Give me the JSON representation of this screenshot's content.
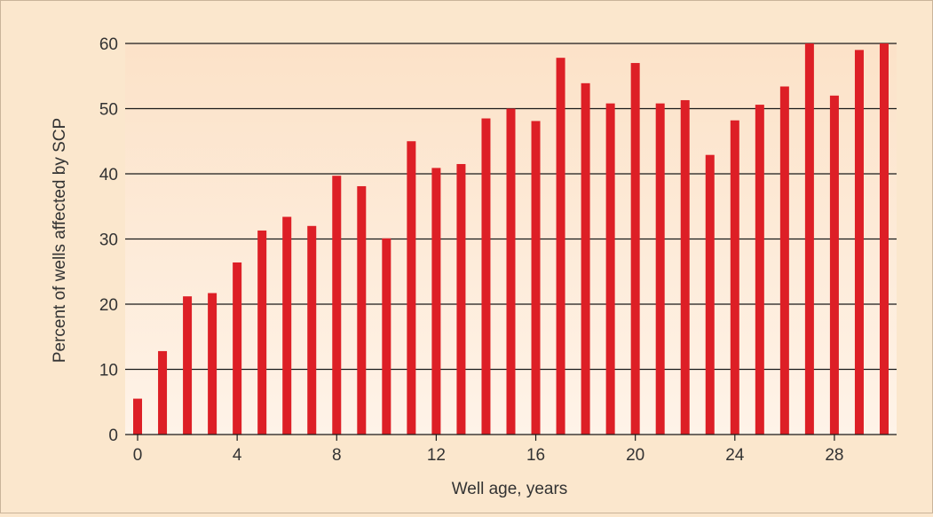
{
  "chart_data": {
    "type": "bar",
    "xlabel": "Well age, years",
    "ylabel": "Percent of wells affected by SCP",
    "x_tick_labels": [
      "0",
      "4",
      "8",
      "12",
      "16",
      "20",
      "24",
      "28"
    ],
    "y_tick_labels": [
      "0",
      "10",
      "20",
      "30",
      "40",
      "50",
      "60"
    ],
    "ylim": [
      0,
      60
    ],
    "grid": "horizontal",
    "categories": [
      0,
      1,
      2,
      3,
      4,
      5,
      6,
      7,
      8,
      9,
      10,
      11,
      12,
      13,
      14,
      15,
      16,
      17,
      18,
      19,
      20,
      21,
      22,
      23,
      24,
      25,
      26,
      27,
      28,
      29,
      30
    ],
    "values": [
      5.5,
      12.8,
      21.2,
      21.7,
      26.4,
      31.3,
      33.4,
      32.0,
      39.7,
      38.1,
      30.1,
      45.0,
      40.9,
      41.5,
      48.5,
      50.0,
      48.1,
      57.8,
      53.9,
      50.8,
      57.0,
      50.8,
      51.3,
      42.9,
      48.2,
      50.6,
      53.4,
      60.0,
      52.0,
      59.0,
      60.0
    ],
    "colors": {
      "bar": "#dd1f26",
      "plot_bg_top": "#fce2c8",
      "plot_bg_bottom": "#fef3e8",
      "page_bg": "#fbe7cd",
      "grid": "#1a1a1a"
    }
  }
}
